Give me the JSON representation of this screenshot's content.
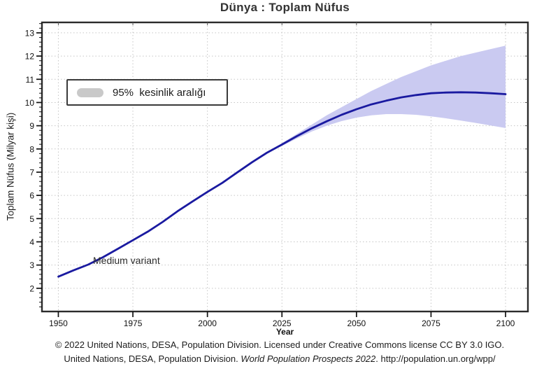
{
  "page": {
    "background": "#ffffff"
  },
  "chart_data": {
    "type": "line",
    "title": "Dünya : Toplam Nüfus",
    "xlabel": "Year",
    "ylabel": "Toplam Nüfus (Milyar kişi)",
    "annotation": "Medium variant",
    "legend": {
      "label": "95%  kesinlik aralığı",
      "swatch_color": "#c9c9c9",
      "position": "upper-left"
    },
    "grid": true,
    "xlim": [
      1944.5,
      2107.5
    ],
    "ylim": [
      1.0,
      13.45
    ],
    "x_ticks": [
      1950,
      1975,
      2000,
      2025,
      2050,
      2075,
      2100
    ],
    "y_ticks": [
      2,
      3,
      4,
      5,
      6,
      7,
      8,
      9,
      10,
      11,
      12,
      13
    ],
    "colors": {
      "median_line": "#1a1aa0",
      "band_fill": "#cacaf1",
      "grid": "#c5c5c5",
      "frame": "#2b2b2b",
      "tick_text": "#111111"
    },
    "series": [
      {
        "name": "Medium variant",
        "type": "line",
        "x": [
          1950,
          1955,
          1960,
          1965,
          1970,
          1975,
          1980,
          1985,
          1990,
          1995,
          2000,
          2005,
          2010,
          2015,
          2020,
          2025,
          2030,
          2035,
          2040,
          2045,
          2050,
          2055,
          2060,
          2065,
          2070,
          2075,
          2080,
          2085,
          2090,
          2095,
          2100
        ],
        "values": [
          2.5,
          2.77,
          3.02,
          3.34,
          3.7,
          4.07,
          4.44,
          4.86,
          5.32,
          5.74,
          6.15,
          6.54,
          6.99,
          7.43,
          7.84,
          8.19,
          8.55,
          8.89,
          9.19,
          9.47,
          9.71,
          9.92,
          10.08,
          10.22,
          10.32,
          10.4,
          10.43,
          10.44,
          10.43,
          10.4,
          10.36
        ],
        "color": "#1a1aa0"
      },
      {
        "name": "95% kesinlik aralığı",
        "type": "band",
        "x": [
          2022,
          2025,
          2030,
          2035,
          2040,
          2045,
          2050,
          2055,
          2060,
          2065,
          2070,
          2075,
          2080,
          2085,
          2090,
          2095,
          2100
        ],
        "upper": [
          7.95,
          8.25,
          8.65,
          9.05,
          9.45,
          9.8,
          10.15,
          10.5,
          10.8,
          11.1,
          11.35,
          11.6,
          11.8,
          12.0,
          12.15,
          12.3,
          12.45
        ],
        "lower": [
          7.95,
          8.13,
          8.45,
          8.75,
          9.0,
          9.2,
          9.35,
          9.45,
          9.5,
          9.5,
          9.47,
          9.4,
          9.32,
          9.22,
          9.12,
          9.01,
          8.9
        ],
        "color": "#cacaf1"
      }
    ]
  },
  "footer": {
    "line1": "© 2022 United Nations, DESA, Population Division. Licensed under Creative Commons license CC BY 3.0 IGO.",
    "line2_prefix": "United Nations, DESA, Population Division. ",
    "line2_italic": "World Population Prospects 2022",
    "line2_suffix": ". http://population.un.org/wpp/"
  }
}
